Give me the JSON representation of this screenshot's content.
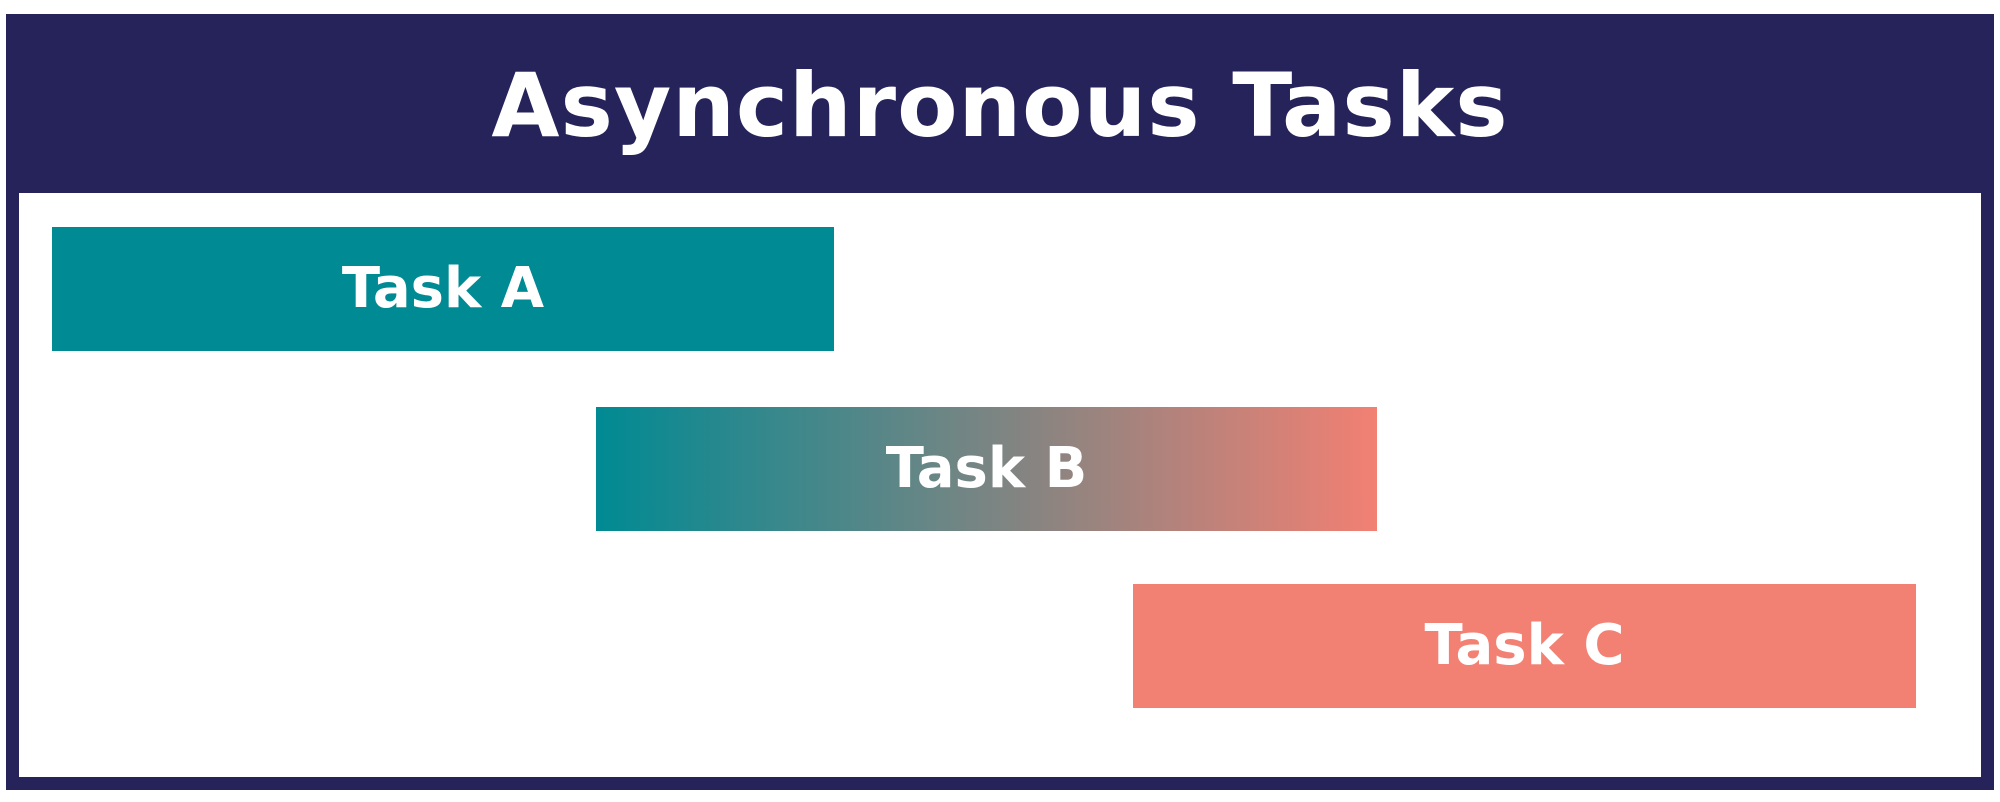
{
  "title": "Asynchronous Tasks",
  "colors": {
    "header": "#26235a",
    "border": "#26235a",
    "teal": "#008a93",
    "salmon": "#f28073",
    "text": "#ffffff"
  },
  "tasks": [
    {
      "label": "Task A",
      "fill": "solid-teal"
    },
    {
      "label": "Task B",
      "fill": "gradient-teal-to-salmon"
    },
    {
      "label": "Task C",
      "fill": "solid-salmon"
    }
  ]
}
